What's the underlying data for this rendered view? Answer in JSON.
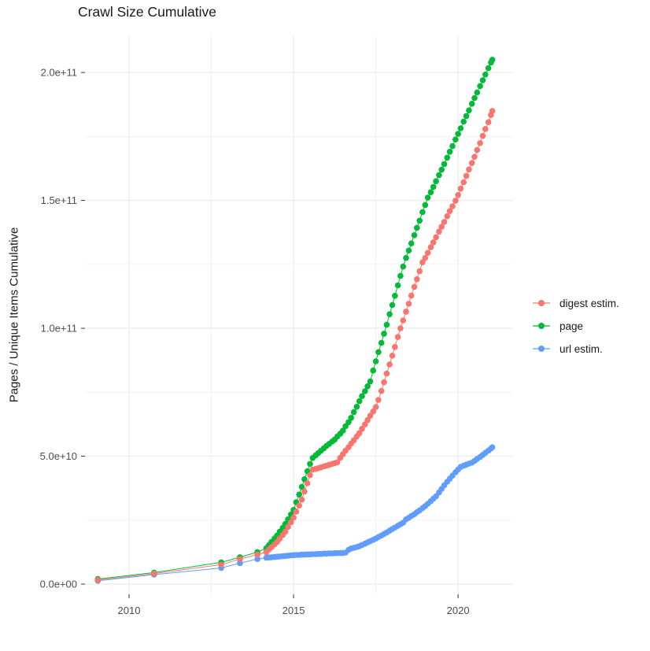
{
  "title": "Crawl Size Cumulative",
  "y_axis_label": "Pages / Unique Items Cumulative",
  "legend": {
    "items": [
      {
        "label": "digest estim.",
        "color": "#F8766D"
      },
      {
        "label": "page",
        "color": "#00BA38"
      },
      {
        "label": "url estim.",
        "color": "#619CFF"
      }
    ]
  },
  "colors": {
    "background": "#ffffff",
    "grid_major": "#EBEBEB",
    "grid_minor": "#EFEFEF",
    "tick_mark": "#333333",
    "axis_text": "#4D4D4D",
    "title_text": "#1a1a1a"
  },
  "chart_data": {
    "type": "scatter",
    "title": "Crawl Size Cumulative",
    "xlabel": "",
    "ylabel": "Pages / Unique Items Cumulative",
    "grid": true,
    "legend_position": "right",
    "value_unit_multiplier": 1000000000.0,
    "xlim": [
      2008.66,
      2021.66
    ],
    "ylim": [
      -4,
      214.5
    ],
    "x_ticks": [
      {
        "label": "2010",
        "value": 2010
      },
      {
        "label": "2015",
        "value": 2015
      },
      {
        "label": "2020",
        "value": 2020
      }
    ],
    "x_minor_ticks": [
      2012.5,
      2017.5
    ],
    "y_ticks": [
      {
        "label": "0.0e+00",
        "value": 0
      },
      {
        "label": "5.0e+10",
        "value": 50
      },
      {
        "label": "1.0e+11",
        "value": 100
      },
      {
        "label": "1.5e+11",
        "value": 150
      },
      {
        "label": "2.0e+11",
        "value": 200
      }
    ],
    "y_minor_ticks": [
      25,
      75,
      125,
      175
    ],
    "series": [
      {
        "name": "digest estim.",
        "color": "#F8766D",
        "z": 3,
        "points": [
          [
            2009.05,
            1.6
          ],
          [
            2010.76,
            4.1
          ],
          [
            2012.8,
            7.6
          ],
          [
            2013.37,
            9.8
          ],
          [
            2013.9,
            11.5
          ],
          [
            2014.17,
            12.5
          ],
          [
            2014.25,
            13.5
          ],
          [
            2014.33,
            14.5
          ],
          [
            2014.42,
            15.5
          ],
          [
            2014.5,
            16.5
          ],
          [
            2014.58,
            17.8
          ],
          [
            2014.67,
            19.2
          ],
          [
            2014.75,
            20.5
          ],
          [
            2014.83,
            22.3
          ],
          [
            2014.92,
            24.2
          ],
          [
            2015,
            26
          ],
          [
            2015.08,
            28.3
          ],
          [
            2015.17,
            30.7
          ],
          [
            2015.25,
            33
          ],
          [
            2015.33,
            36.2
          ],
          [
            2015.42,
            39.4
          ],
          [
            2015.5,
            42.6
          ],
          [
            2015.58,
            44.8
          ],
          [
            2015.67,
            45
          ],
          [
            2015.75,
            45.3
          ],
          [
            2015.83,
            45.6
          ],
          [
            2015.92,
            46
          ],
          [
            2016,
            46.3
          ],
          [
            2016.08,
            46.6
          ],
          [
            2016.17,
            47
          ],
          [
            2016.25,
            47.3
          ],
          [
            2016.33,
            47.6
          ],
          [
            2016.42,
            49.4
          ],
          [
            2016.5,
            50.8
          ],
          [
            2016.58,
            52.2
          ],
          [
            2016.67,
            53.5
          ],
          [
            2016.75,
            54.9
          ],
          [
            2016.83,
            56.2
          ],
          [
            2016.92,
            57.7
          ],
          [
            2017,
            59
          ],
          [
            2017.08,
            60.7
          ],
          [
            2017.17,
            62.4
          ],
          [
            2017.25,
            64.1
          ],
          [
            2017.33,
            65.8
          ],
          [
            2017.42,
            67.5
          ],
          [
            2017.5,
            69.2
          ],
          [
            2017.58,
            72
          ],
          [
            2017.67,
            75.5
          ],
          [
            2017.75,
            78.9
          ],
          [
            2017.83,
            82.3
          ],
          [
            2017.92,
            85.9
          ],
          [
            2018,
            89.3
          ],
          [
            2018.08,
            92.7
          ],
          [
            2018.17,
            96.6
          ],
          [
            2018.25,
            100
          ],
          [
            2018.33,
            103.1
          ],
          [
            2018.42,
            106.5
          ],
          [
            2018.5,
            109.6
          ],
          [
            2018.58,
            112.8
          ],
          [
            2018.67,
            116.2
          ],
          [
            2018.75,
            119.2
          ],
          [
            2018.83,
            122.3
          ],
          [
            2018.92,
            125.8
          ],
          [
            2019,
            127.5
          ],
          [
            2019.08,
            129.5
          ],
          [
            2019.17,
            131.7
          ],
          [
            2019.25,
            133.6
          ],
          [
            2019.33,
            135.6
          ],
          [
            2019.42,
            137.8
          ],
          [
            2019.5,
            139.7
          ],
          [
            2019.58,
            141.6
          ],
          [
            2019.67,
            143.8
          ],
          [
            2019.75,
            145.8
          ],
          [
            2019.83,
            147.7
          ],
          [
            2019.92,
            149.9
          ],
          [
            2020,
            152.1
          ],
          [
            2020.08,
            154.6
          ],
          [
            2020.17,
            157.1
          ],
          [
            2020.25,
            159.6
          ],
          [
            2020.33,
            162.1
          ],
          [
            2020.42,
            164.6
          ],
          [
            2020.5,
            167
          ],
          [
            2020.58,
            169.7
          ],
          [
            2020.67,
            172.4
          ],
          [
            2020.75,
            175.2
          ],
          [
            2020.83,
            177.9
          ],
          [
            2020.92,
            180.6
          ],
          [
            2021,
            183.4
          ],
          [
            2021.04,
            185
          ]
        ]
      },
      {
        "name": "page",
        "color": "#00BA38",
        "z": 1,
        "points": [
          [
            2009.05,
            2
          ],
          [
            2010.76,
            4.5
          ],
          [
            2012.8,
            8.5
          ],
          [
            2013.37,
            10.5
          ],
          [
            2013.9,
            12.5
          ],
          [
            2014.17,
            14
          ],
          [
            2014.25,
            15.2
          ],
          [
            2014.33,
            16.5
          ],
          [
            2014.42,
            17.8
          ],
          [
            2014.5,
            19
          ],
          [
            2014.58,
            20.5
          ],
          [
            2014.67,
            22
          ],
          [
            2014.75,
            23.5
          ],
          [
            2014.83,
            25.3
          ],
          [
            2014.92,
            27.2
          ],
          [
            2015,
            29
          ],
          [
            2015.08,
            32
          ],
          [
            2015.17,
            35
          ],
          [
            2015.25,
            38
          ],
          [
            2015.33,
            41
          ],
          [
            2015.42,
            44.1
          ],
          [
            2015.5,
            47
          ],
          [
            2015.58,
            49.3
          ],
          [
            2015.67,
            50.3
          ],
          [
            2015.75,
            51.2
          ],
          [
            2015.83,
            52.1
          ],
          [
            2015.92,
            53.1
          ],
          [
            2016,
            54
          ],
          [
            2016.08,
            54.8
          ],
          [
            2016.17,
            55.7
          ],
          [
            2016.25,
            56.5
          ],
          [
            2016.33,
            57.7
          ],
          [
            2016.42,
            58.8
          ],
          [
            2016.5,
            60
          ],
          [
            2016.58,
            61.7
          ],
          [
            2016.67,
            63.3
          ],
          [
            2016.75,
            65
          ],
          [
            2016.83,
            67.2
          ],
          [
            2016.92,
            69.3
          ],
          [
            2017,
            71.5
          ],
          [
            2017.08,
            73.5
          ],
          [
            2017.17,
            75.4
          ],
          [
            2017.25,
            77.3
          ],
          [
            2017.33,
            79.2
          ],
          [
            2017.42,
            83.5
          ],
          [
            2017.5,
            87.1
          ],
          [
            2017.58,
            90.7
          ],
          [
            2017.67,
            94.3
          ],
          [
            2017.75,
            97.9
          ],
          [
            2017.83,
            101.4
          ],
          [
            2017.92,
            105.5
          ],
          [
            2018,
            109.1
          ],
          [
            2018.08,
            112.7
          ],
          [
            2018.17,
            116.8
          ],
          [
            2018.25,
            120.5
          ],
          [
            2018.33,
            124.1
          ],
          [
            2018.42,
            127.5
          ],
          [
            2018.5,
            130.4
          ],
          [
            2018.58,
            133.2
          ],
          [
            2018.67,
            136.4
          ],
          [
            2018.75,
            139.3
          ],
          [
            2018.83,
            142.1
          ],
          [
            2018.92,
            145.4
          ],
          [
            2019,
            148.2
          ],
          [
            2019.08,
            151.1
          ],
          [
            2019.17,
            153.2
          ],
          [
            2019.25,
            155.3
          ],
          [
            2019.33,
            157.5
          ],
          [
            2019.42,
            159.9
          ],
          [
            2019.5,
            162
          ],
          [
            2019.58,
            164.2
          ],
          [
            2019.67,
            166.7
          ],
          [
            2019.75,
            169
          ],
          [
            2019.83,
            171.2
          ],
          [
            2019.92,
            173.8
          ],
          [
            2020,
            176
          ],
          [
            2020.08,
            178.2
          ],
          [
            2020.17,
            180.8
          ],
          [
            2020.25,
            183
          ],
          [
            2020.33,
            185.2
          ],
          [
            2020.42,
            187.8
          ],
          [
            2020.5,
            190
          ],
          [
            2020.58,
            192.2
          ],
          [
            2020.67,
            194.7
          ],
          [
            2020.75,
            197
          ],
          [
            2020.83,
            199.2
          ],
          [
            2020.92,
            201.7
          ],
          [
            2021,
            203.9
          ],
          [
            2021.04,
            205
          ]
        ]
      },
      {
        "name": "url estim.",
        "color": "#619CFF",
        "z": 2,
        "points": [
          [
            2009.05,
            1.3
          ],
          [
            2010.76,
            3.7
          ],
          [
            2012.8,
            6.3
          ],
          [
            2013.37,
            8.2
          ],
          [
            2013.9,
            9.8
          ],
          [
            2014.17,
            10.3
          ],
          [
            2014.25,
            10.4
          ],
          [
            2014.33,
            10.5
          ],
          [
            2014.42,
            10.6
          ],
          [
            2014.5,
            10.7
          ],
          [
            2014.58,
            10.8
          ],
          [
            2014.67,
            10.9
          ],
          [
            2014.75,
            11
          ],
          [
            2014.83,
            11.1
          ],
          [
            2014.92,
            11.2
          ],
          [
            2015,
            11.3
          ],
          [
            2015.08,
            11.4
          ],
          [
            2015.17,
            11.4
          ],
          [
            2015.25,
            11.5
          ],
          [
            2015.33,
            11.5
          ],
          [
            2015.42,
            11.6
          ],
          [
            2015.5,
            11.6
          ],
          [
            2015.58,
            11.7
          ],
          [
            2015.67,
            11.7
          ],
          [
            2015.75,
            11.8
          ],
          [
            2015.83,
            11.8
          ],
          [
            2015.92,
            11.9
          ],
          [
            2016,
            11.9
          ],
          [
            2016.08,
            12
          ],
          [
            2016.17,
            12
          ],
          [
            2016.25,
            12.1
          ],
          [
            2016.33,
            12.1
          ],
          [
            2016.42,
            12.2
          ],
          [
            2016.5,
            12.2
          ],
          [
            2016.58,
            12.3
          ],
          [
            2016.67,
            13.4
          ],
          [
            2016.75,
            13.9
          ],
          [
            2016.83,
            14.2
          ],
          [
            2016.92,
            14.5
          ],
          [
            2017,
            14.8
          ],
          [
            2017.08,
            15.3
          ],
          [
            2017.17,
            15.8
          ],
          [
            2017.25,
            16.3
          ],
          [
            2017.33,
            16.8
          ],
          [
            2017.42,
            17.3
          ],
          [
            2017.5,
            17.8
          ],
          [
            2017.58,
            18.4
          ],
          [
            2017.67,
            19
          ],
          [
            2017.75,
            19.6
          ],
          [
            2017.83,
            20.2
          ],
          [
            2017.92,
            20.9
          ],
          [
            2018,
            21.5
          ],
          [
            2018.08,
            22.1
          ],
          [
            2018.17,
            22.8
          ],
          [
            2018.25,
            23.4
          ],
          [
            2018.33,
            24
          ],
          [
            2018.42,
            25.3
          ],
          [
            2018.5,
            25.9
          ],
          [
            2018.58,
            26.6
          ],
          [
            2018.67,
            27.3
          ],
          [
            2018.75,
            28.1
          ],
          [
            2018.83,
            28.8
          ],
          [
            2018.92,
            29.7
          ],
          [
            2019,
            30.5
          ],
          [
            2019.08,
            31.4
          ],
          [
            2019.17,
            32.4
          ],
          [
            2019.25,
            33.4
          ],
          [
            2019.33,
            34.3
          ],
          [
            2019.42,
            35.8
          ],
          [
            2019.5,
            37.2
          ],
          [
            2019.58,
            38.6
          ],
          [
            2019.67,
            40
          ],
          [
            2019.75,
            41.2
          ],
          [
            2019.83,
            42.4
          ],
          [
            2019.92,
            43.7
          ],
          [
            2020,
            44.8
          ],
          [
            2020.08,
            45.8
          ],
          [
            2020.17,
            46.3
          ],
          [
            2020.25,
            46.7
          ],
          [
            2020.33,
            47.1
          ],
          [
            2020.42,
            47.5
          ],
          [
            2020.5,
            48.2
          ],
          [
            2020.58,
            48.9
          ],
          [
            2020.67,
            49.7
          ],
          [
            2020.75,
            50.5
          ],
          [
            2020.83,
            51.3
          ],
          [
            2020.92,
            52.2
          ],
          [
            2021,
            53
          ],
          [
            2021.04,
            53.5
          ]
        ]
      }
    ]
  }
}
